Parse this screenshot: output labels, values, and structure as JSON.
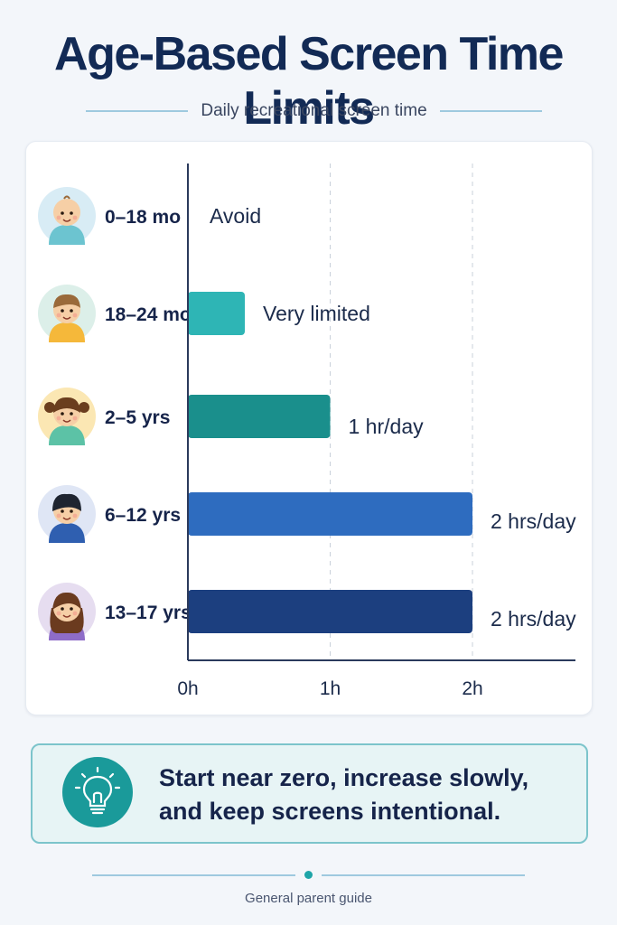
{
  "header": {
    "title": "Age-Based Screen Time Limits",
    "subtitle": "Daily recreational screen time"
  },
  "chart_data": {
    "type": "bar",
    "orientation": "horizontal",
    "categories": [
      "0–18 mo",
      "18–24 mo",
      "2–5 yrs",
      "6–12 yrs",
      "13–17 yrs"
    ],
    "values": [
      0,
      0.4,
      1,
      2,
      2
    ],
    "value_labels": [
      "Avoid",
      "Very limited",
      "1 hr/day",
      "2 hrs/day",
      "2 hrs/day"
    ],
    "bar_colors": [
      "#2eb5b5",
      "#2eb5b5",
      "#1a8f8c",
      "#2e6cbf",
      "#1c3f7f"
    ],
    "avatars": [
      "baby-avatar",
      "toddler-avatar",
      "girl-pigtails-avatar",
      "boy-avatar",
      "teen-girl-avatar"
    ],
    "avatar_backgrounds": [
      "#d8ecf5",
      "#dcefe9",
      "#fbe7b3",
      "#dfe6f5",
      "#e6ddf0"
    ],
    "x_ticks": [
      0,
      1,
      2
    ],
    "x_tick_labels": [
      "0h",
      "1h",
      "2h"
    ],
    "xlim": [
      0,
      2.72
    ],
    "grid": "dashed vertical at 1h and 2h",
    "axis_color": "#2b3a5c"
  },
  "tip": {
    "line1": "Start near zero, increase slowly,",
    "line2": "and keep screens intentional.",
    "icon": "lightbulb-icon",
    "icon_bg": "#1a9a9a"
  },
  "footer": {
    "text": "General parent guide",
    "accent": "#1fa5a8"
  }
}
